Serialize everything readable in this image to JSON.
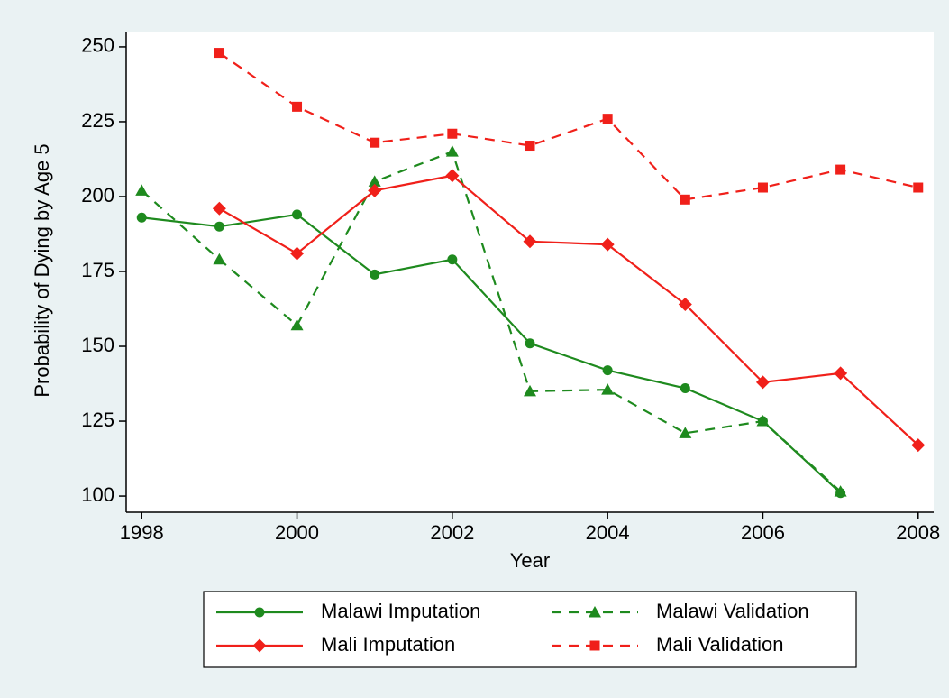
{
  "chart_data": {
    "type": "line",
    "xlabel": "Year",
    "ylabel": "Probability of Dying by Age 5",
    "x": [
      1998,
      1999,
      2000,
      2001,
      2002,
      2003,
      2004,
      2005,
      2006,
      2007,
      2008
    ],
    "xlim": [
      1997.8,
      2008.2
    ],
    "xticks": [
      1998,
      2000,
      2002,
      2004,
      2006,
      2008
    ],
    "ylim": [
      94.6,
      255.1
    ],
    "yticks": [
      100,
      125,
      150,
      175,
      200,
      225,
      250
    ],
    "grid": false,
    "legend": "bottom",
    "series": [
      {
        "name": "Malawi Imputation",
        "color": "#1e8a1e",
        "marker": "circle",
        "dash": false,
        "values": [
          193,
          190,
          194,
          174,
          179,
          151,
          142,
          136,
          125,
          101,
          null
        ]
      },
      {
        "name": "Malawi Validation",
        "color": "#1e8a1e",
        "marker": "triangle",
        "dash": true,
        "values": [
          202,
          179,
          157,
          205,
          215,
          135,
          135.5,
          121,
          125,
          101.5,
          null
        ]
      },
      {
        "name": "Mali Imputation",
        "color": "#f0201a",
        "marker": "diamond",
        "dash": false,
        "values": [
          null,
          196,
          181,
          202,
          207,
          185,
          184,
          164,
          138,
          141,
          117
        ]
      },
      {
        "name": "Mali Validation",
        "color": "#f0201a",
        "marker": "square",
        "dash": true,
        "values": [
          null,
          248,
          230,
          218,
          221,
          217,
          226,
          199,
          203,
          209,
          203
        ]
      }
    ]
  }
}
